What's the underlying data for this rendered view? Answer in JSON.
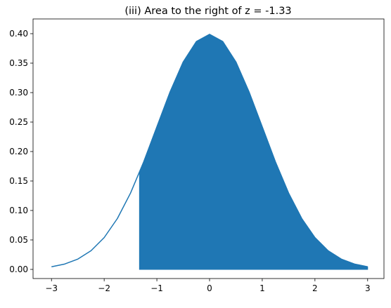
{
  "chart_data": {
    "type": "line",
    "title": "(iii) Area to the right of z = -1.33",
    "x": [
      -3,
      -2.75,
      -2.5,
      -2.25,
      -2,
      -1.75,
      -1.5,
      -1.25,
      -1,
      -0.75,
      -0.5,
      -0.25,
      0,
      0.25,
      0.5,
      0.75,
      1,
      1.25,
      1.5,
      1.75,
      2,
      2.25,
      2.5,
      2.75,
      3
    ],
    "series": [
      {
        "color": "#1f77b4",
        "values": [
          0.0044,
          0.0091,
          0.0175,
          0.0317,
          0.054,
          0.0863,
          0.1295,
          0.1826,
          0.242,
          0.3011,
          0.3521,
          0.3867,
          0.3989,
          0.3867,
          0.3521,
          0.3011,
          0.242,
          0.1826,
          0.1295,
          0.0863,
          0.054,
          0.0317,
          0.0175,
          0.0091,
          0.0044
        ]
      }
    ],
    "fill": {
      "color": "#1f77b4",
      "x": [
        -1.33,
        -1.25,
        -1,
        -0.75,
        -0.5,
        -0.25,
        0,
        0.25,
        0.5,
        0.75,
        1,
        1.25,
        1.5,
        1.75,
        2,
        2.25,
        2.5,
        2.75,
        3
      ],
      "values": [
        0.1647,
        0.1826,
        0.242,
        0.3011,
        0.3521,
        0.3867,
        0.3989,
        0.3867,
        0.3521,
        0.3011,
        0.242,
        0.1826,
        0.1295,
        0.0863,
        0.054,
        0.0317,
        0.0175,
        0.0091,
        0.0044
      ]
    },
    "xlim": [
      -3.35,
      3.31
    ],
    "ylim": [
      -0.0155,
      0.425
    ],
    "xticks": [
      {
        "value": -3,
        "label": "−3"
      },
      {
        "value": -2,
        "label": "−2"
      },
      {
        "value": -1,
        "label": "−1"
      },
      0,
      1,
      2,
      3
    ],
    "yticks": [
      {
        "value": 0,
        "label": "0.00"
      },
      {
        "value": 0.05,
        "label": "0.05"
      },
      {
        "value": 0.1,
        "label": "0.10"
      },
      {
        "value": 0.15,
        "label": "0.15"
      },
      {
        "value": 0.2,
        "label": "0.20"
      },
      {
        "value": 0.25,
        "label": "0.25"
      },
      {
        "value": 0.3,
        "label": "0.30"
      },
      {
        "value": 0.35,
        "label": "0.35"
      },
      {
        "value": 0.4,
        "label": "0.40"
      }
    ],
    "grid": false
  }
}
